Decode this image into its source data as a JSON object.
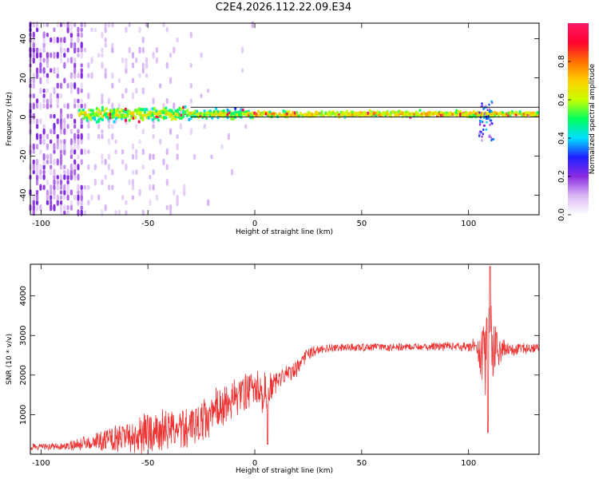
{
  "title": "C2E4.2026.112.22.09.E34",
  "chart_data": [
    {
      "type": "heatmap",
      "title": "C2E4.2026.112.22.09.E34",
      "xlabel": "Height of straight line (km)",
      "ylabel": "Frequency (Hz)",
      "xlim": [
        -105,
        133
      ],
      "ylim": [
        -50,
        48
      ],
      "xticks": [
        -100,
        -50,
        0,
        50,
        100
      ],
      "yticks": [
        -40,
        -20,
        0,
        20,
        40
      ],
      "grid": false,
      "line_reference_hz": [
        5,
        0
      ],
      "colorbar": {
        "label": "Normalized spectral amplitude",
        "range": [
          0,
          1
        ],
        "ticks": [
          "0.0",
          "0.2",
          "0.4",
          "0.6",
          "0.8"
        ],
        "colormap": [
          "#ffffff",
          "#d9b8f5",
          "#8a2be2",
          "#2020ff",
          "#00e0ff",
          "#00ff60",
          "#c8ff00",
          "#ffd000",
          "#ff7000",
          "#ff0030",
          "#ff1a66"
        ]
      },
      "features": [
        {
          "name": "dense noise band",
          "x_range": [
            -105,
            -80
          ],
          "freq_range": [
            -50,
            48
          ],
          "amplitude": 0.15
        },
        {
          "name": "central signal band",
          "x_range": [
            -82,
            133
          ],
          "freq_center": 1.5,
          "amplitude": 0.5
        },
        {
          "name": "spike",
          "x_range": [
            105,
            112
          ],
          "freq_range": [
            -12,
            8
          ],
          "amplitude": 0.3
        }
      ]
    },
    {
      "type": "line",
      "xlabel": "Height of straight line (km)",
      "ylabel": "SNR (10 * v/v)",
      "xlim": [
        -105,
        133
      ],
      "ylim": [
        0,
        4800
      ],
      "xticks": [
        -100,
        -50,
        0,
        50,
        100
      ],
      "yticks": [
        1000,
        2000,
        3000,
        4000
      ],
      "color": "#ee3333",
      "envelope": {
        "x": [
          -105,
          -90,
          -82,
          -70,
          -60,
          -50,
          -40,
          -30,
          -20,
          -10,
          -5,
          0,
          5,
          8,
          12,
          20,
          25,
          30,
          40,
          60,
          80,
          100,
          104,
          107,
          110,
          113,
          118,
          133
        ],
        "mid": [
          180,
          200,
          250,
          380,
          420,
          520,
          620,
          700,
          1000,
          1400,
          1550,
          1700,
          1500,
          1700,
          1900,
          2200,
          2550,
          2650,
          2700,
          2700,
          2720,
          2720,
          2750,
          2400,
          2700,
          2650,
          2650,
          2680
        ],
        "amp": [
          150,
          150,
          300,
          450,
          650,
          900,
          900,
          900,
          950,
          850,
          800,
          700,
          1000,
          600,
          400,
          400,
          250,
          200,
          180,
          150,
          170,
          200,
          400,
          1600,
          2200,
          800,
          300,
          200
        ]
      },
      "features": [
        {
          "name": "dip",
          "x": 6,
          "value": 250
        },
        {
          "name": "peak",
          "x": 110,
          "value": 4750
        },
        {
          "name": "trough",
          "x": 109,
          "value": 550
        }
      ]
    }
  ]
}
